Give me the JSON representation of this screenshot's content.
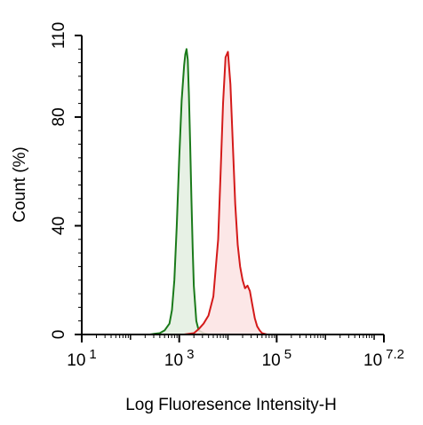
{
  "chart_data": {
    "type": "area",
    "xlabel": "Log Fluoresence Intensity-H",
    "ylabel": "Count  (%)",
    "x_scale": "log10",
    "xlim": [
      10,
      15848931.9
    ],
    "ylim": [
      0,
      110
    ],
    "x_ticks": [
      {
        "value": 10,
        "base": "10",
        "exp": "1"
      },
      {
        "value": 1000,
        "base": "10",
        "exp": "3"
      },
      {
        "value": 100000,
        "base": "10",
        "exp": "5"
      },
      {
        "value": 15848931.9,
        "base": "10",
        "exp": "7.2"
      }
    ],
    "y_ticks": [
      {
        "value": 0,
        "label": "0"
      },
      {
        "value": 40,
        "label": "40"
      },
      {
        "value": 80,
        "label": "80"
      },
      {
        "value": 110,
        "label": "110"
      }
    ],
    "series": [
      {
        "color": "#1a7a1a",
        "fill": "#e3efe0",
        "x": [
          251,
          316,
          398,
          501,
          631,
          708,
          794,
          891,
          1000,
          1122,
          1259,
          1334,
          1413,
          1496,
          1585,
          1679,
          1778,
          1884,
          1995,
          2239,
          2512,
          3162,
          3981
        ],
        "y": [
          0,
          0.3,
          0.5,
          1.5,
          4,
          9,
          20,
          40,
          65,
          86,
          99,
          103,
          105,
          101,
          88,
          70,
          50,
          32,
          18,
          5,
          1.5,
          0.5,
          0
        ]
      },
      {
        "color": "#d41a1a",
        "fill": "#fbe3e3",
        "x": [
          1259,
          2000,
          2512,
          3162,
          3981,
          5012,
          6310,
          7079,
          7943,
          8913,
          10000,
          11220,
          12589,
          14125,
          15849,
          17783,
          19953,
          22387,
          25119,
          28184,
          31623,
          35481,
          39811,
          44668,
          50119,
          63096
        ],
        "y": [
          0,
          0.5,
          2,
          4,
          7,
          14,
          35,
          60,
          85,
          102,
          104,
          92,
          70,
          48,
          33,
          25,
          20,
          17,
          18,
          16,
          11,
          6,
          3,
          1.5,
          0.5,
          0
        ]
      }
    ]
  }
}
